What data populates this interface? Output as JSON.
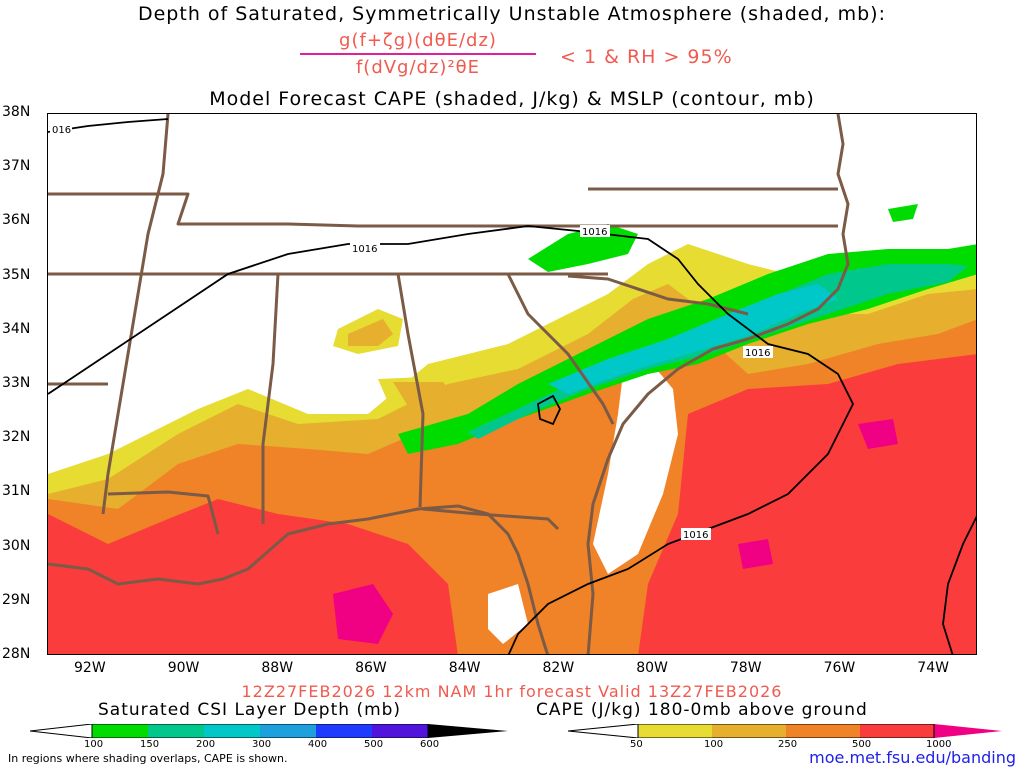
{
  "header": {
    "title_line1": "Depth of Saturated, Symmetrically Unstable Atmosphere (shaded, mb):",
    "formula_numerator": "g(f+ζg)(dθE/dz)",
    "formula_denominator": "f(dVg/dz)²θE",
    "formula_condition": "< 1 & RH > 95%",
    "title_line3": "Model Forecast CAPE (shaded, J/kg) & MSLP (contour, mb)"
  },
  "axes": {
    "lat_labels": [
      "38N",
      "37N",
      "36N",
      "35N",
      "34N",
      "33N",
      "32N",
      "31N",
      "30N",
      "29N",
      "28N"
    ],
    "lon_labels": [
      "92W",
      "90W",
      "88W",
      "86W",
      "84W",
      "82W",
      "80W",
      "78W",
      "76W",
      "74W"
    ]
  },
  "contours": {
    "isobar_label": "1016",
    "isobar_label_topleft": "016"
  },
  "footer": {
    "run_info": "12Z27FEB2026 12km NAM 1hr forecast Valid 13Z27FEB2026",
    "csi_legend_title": "Saturated CSI Layer Depth (mb)",
    "cape_legend_title": "CAPE (J/kg) 180-0mb above ground",
    "csi_ticks": [
      "100",
      "150",
      "200",
      "300",
      "400",
      "500",
      "600"
    ],
    "cape_ticks": [
      "50",
      "100",
      "250",
      "500",
      "1000"
    ],
    "overlap_note": "In regions where shading overlaps, CAPE is shown.",
    "website": "moe.met.fsu.edu/banding"
  },
  "colors": {
    "cape_50": "#e6dc32",
    "cape_100": "#e6af2d",
    "cape_250": "#f08228",
    "cape_500": "#fa3c3c",
    "cape_1000": "#f00082",
    "csi_100": "#00dc00",
    "csi_150": "#00c88c",
    "csi_200": "#00c8c8",
    "csi_300": "#1ea0dc",
    "csi_400": "#1e3cff",
    "csi_500": "#5014dc",
    "csi_600": "#a000c8",
    "borders": "#7b5a46",
    "link": "#2020e8"
  }
}
